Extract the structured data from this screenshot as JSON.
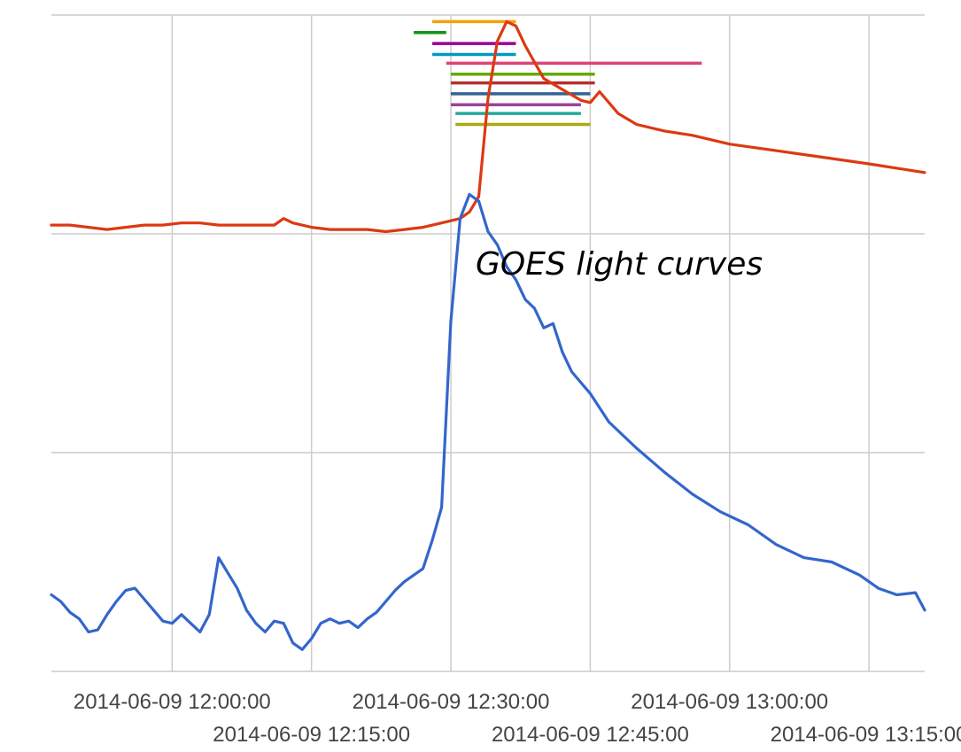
{
  "chart_data": {
    "type": "line",
    "title": "",
    "xlabel": "",
    "ylabel": "",
    "annotation": "GOES light curves",
    "x_axis": {
      "type": "datetime",
      "range": [
        "2014-06-09 11:47:00",
        "2014-06-09 13:21:00"
      ],
      "ticks": [
        {
          "value": "2014-06-09 12:00:00",
          "label": "2014-06-09 12:00:00",
          "row": 1
        },
        {
          "value": "2014-06-09 12:15:00",
          "label": "2014-06-09 12:15:00",
          "row": 2
        },
        {
          "value": "2014-06-09 12:30:00",
          "label": "2014-06-09 12:30:00",
          "row": 1
        },
        {
          "value": "2014-06-09 12:45:00",
          "label": "2014-06-09 12:45:00",
          "row": 2
        },
        {
          "value": "2014-06-09 13:00:00",
          "label": "2014-06-09 13:00:00",
          "row": 1
        },
        {
          "value": "2014-06-09 13:15:00",
          "label": "2014-06-09 13:15:00",
          "row": 2
        }
      ]
    },
    "y_axis": {
      "range": [
        0,
        3
      ],
      "gridlines": [
        0,
        1,
        2,
        3
      ],
      "tick_labels": "none"
    },
    "grid": true,
    "legend": "none",
    "series": [
      {
        "color": "#dc3912",
        "points": [
          [
            "11:47:00",
            2.04
          ],
          [
            "11:49:00",
            2.04
          ],
          [
            "11:51:00",
            2.03
          ],
          [
            "11:53:00",
            2.02
          ],
          [
            "11:55:00",
            2.03
          ],
          [
            "11:57:00",
            2.04
          ],
          [
            "11:59:00",
            2.04
          ],
          [
            "12:01:00",
            2.05
          ],
          [
            "12:03:00",
            2.05
          ],
          [
            "12:05:00",
            2.04
          ],
          [
            "12:07:00",
            2.04
          ],
          [
            "12:09:00",
            2.04
          ],
          [
            "12:11:00",
            2.04
          ],
          [
            "12:12:00",
            2.07
          ],
          [
            "12:13:00",
            2.05
          ],
          [
            "12:15:00",
            2.03
          ],
          [
            "12:17:00",
            2.02
          ],
          [
            "12:19:00",
            2.02
          ],
          [
            "12:21:00",
            2.02
          ],
          [
            "12:23:00",
            2.01
          ],
          [
            "12:25:00",
            2.02
          ],
          [
            "12:27:00",
            2.03
          ],
          [
            "12:29:00",
            2.05
          ],
          [
            "12:31:00",
            2.07
          ],
          [
            "12:32:00",
            2.1
          ],
          [
            "12:33:00",
            2.17
          ],
          [
            "12:34:00",
            2.62
          ],
          [
            "12:35:00",
            2.88
          ],
          [
            "12:36:00",
            2.97
          ],
          [
            "12:37:00",
            2.95
          ],
          [
            "12:38:00",
            2.86
          ],
          [
            "12:40:00",
            2.71
          ],
          [
            "12:42:00",
            2.66
          ],
          [
            "12:44:00",
            2.61
          ],
          [
            "12:45:00",
            2.6
          ],
          [
            "12:46:00",
            2.65
          ],
          [
            "12:48:00",
            2.55
          ],
          [
            "12:50:00",
            2.5
          ],
          [
            "12:53:00",
            2.47
          ],
          [
            "12:56:00",
            2.45
          ],
          [
            "13:00:00",
            2.41
          ],
          [
            "13:05:00",
            2.38
          ],
          [
            "13:10:00",
            2.35
          ],
          [
            "13:15:00",
            2.32
          ],
          [
            "13:21:00",
            2.28
          ]
        ]
      },
      {
        "color": "#3366cc",
        "points": [
          [
            "11:47:00",
            0.35
          ],
          [
            "11:48:00",
            0.32
          ],
          [
            "11:49:00",
            0.27
          ],
          [
            "11:50:00",
            0.24
          ],
          [
            "11:51:00",
            0.18
          ],
          [
            "11:52:00",
            0.19
          ],
          [
            "11:53:00",
            0.26
          ],
          [
            "11:54:00",
            0.32
          ],
          [
            "11:55:00",
            0.37
          ],
          [
            "11:56:00",
            0.38
          ],
          [
            "11:57:00",
            0.33
          ],
          [
            "11:58:00",
            0.28
          ],
          [
            "11:59:00",
            0.23
          ],
          [
            "12:00:00",
            0.22
          ],
          [
            "12:01:00",
            0.26
          ],
          [
            "12:02:00",
            0.22
          ],
          [
            "12:03:00",
            0.18
          ],
          [
            "12:04:00",
            0.26
          ],
          [
            "12:05:00",
            0.52
          ],
          [
            "12:06:00",
            0.45
          ],
          [
            "12:07:00",
            0.38
          ],
          [
            "12:08:00",
            0.28
          ],
          [
            "12:09:00",
            0.22
          ],
          [
            "12:10:00",
            0.18
          ],
          [
            "12:11:00",
            0.23
          ],
          [
            "12:12:00",
            0.22
          ],
          [
            "12:13:00",
            0.13
          ],
          [
            "12:14:00",
            0.1
          ],
          [
            "12:15:00",
            0.15
          ],
          [
            "12:16:00",
            0.22
          ],
          [
            "12:17:00",
            0.24
          ],
          [
            "12:18:00",
            0.22
          ],
          [
            "12:19:00",
            0.23
          ],
          [
            "12:20:00",
            0.2
          ],
          [
            "12:21:00",
            0.24
          ],
          [
            "12:22:00",
            0.27
          ],
          [
            "12:23:00",
            0.32
          ],
          [
            "12:24:00",
            0.37
          ],
          [
            "12:25:00",
            0.41
          ],
          [
            "12:26:00",
            0.44
          ],
          [
            "12:27:00",
            0.47
          ],
          [
            "12:28:00",
            0.6
          ],
          [
            "12:29:00",
            0.75
          ],
          [
            "12:30:00",
            1.6
          ],
          [
            "12:31:00",
            2.07
          ],
          [
            "12:32:00",
            2.18
          ],
          [
            "12:33:00",
            2.15
          ],
          [
            "12:34:00",
            2.01
          ],
          [
            "12:35:00",
            1.95
          ],
          [
            "12:36:00",
            1.85
          ],
          [
            "12:37:00",
            1.79
          ],
          [
            "12:38:00",
            1.7
          ],
          [
            "12:39:00",
            1.66
          ],
          [
            "12:40:00",
            1.57
          ],
          [
            "12:41:00",
            1.59
          ],
          [
            "12:42:00",
            1.46
          ],
          [
            "12:43:00",
            1.37
          ],
          [
            "12:45:00",
            1.27
          ],
          [
            "12:47:00",
            1.14
          ],
          [
            "12:50:00",
            1.02
          ],
          [
            "12:53:00",
            0.91
          ],
          [
            "12:56:00",
            0.81
          ],
          [
            "12:59:00",
            0.73
          ],
          [
            "13:02:00",
            0.67
          ],
          [
            "13:05:00",
            0.58
          ],
          [
            "13:08:00",
            0.52
          ],
          [
            "13:11:00",
            0.5
          ],
          [
            "13:14:00",
            0.44
          ],
          [
            "13:16:00",
            0.38
          ],
          [
            "13:18:00",
            0.35
          ],
          [
            "13:20:00",
            0.36
          ],
          [
            "13:21:00",
            0.28
          ]
        ]
      }
    ],
    "range_bars": [
      {
        "color": "#f0a30a",
        "start": "12:28:00",
        "end": "12:37:00",
        "y": 2.97
      },
      {
        "color": "#109618",
        "start": "12:26:00",
        "end": "12:29:30",
        "y": 2.92
      },
      {
        "color": "#990099",
        "start": "12:28:00",
        "end": "12:37:00",
        "y": 2.87
      },
      {
        "color": "#0099c6",
        "start": "12:28:00",
        "end": "12:37:00",
        "y": 2.82
      },
      {
        "color": "#dd4477",
        "start": "12:29:30",
        "end": "12:57:00",
        "y": 2.78
      },
      {
        "color": "#66aa00",
        "start": "12:30:00",
        "end": "12:45:30",
        "y": 2.73
      },
      {
        "color": "#b82e2e",
        "start": "12:30:00",
        "end": "12:45:30",
        "y": 2.69
      },
      {
        "color": "#316395",
        "start": "12:30:00",
        "end": "12:45:00",
        "y": 2.64
      },
      {
        "color": "#994499",
        "start": "12:30:00",
        "end": "12:44:00",
        "y": 2.59
      },
      {
        "color": "#22aa99",
        "start": "12:30:30",
        "end": "12:44:00",
        "y": 2.55
      },
      {
        "color": "#aaaa11",
        "start": "12:30:30",
        "end": "12:45:00",
        "y": 2.5
      }
    ]
  }
}
